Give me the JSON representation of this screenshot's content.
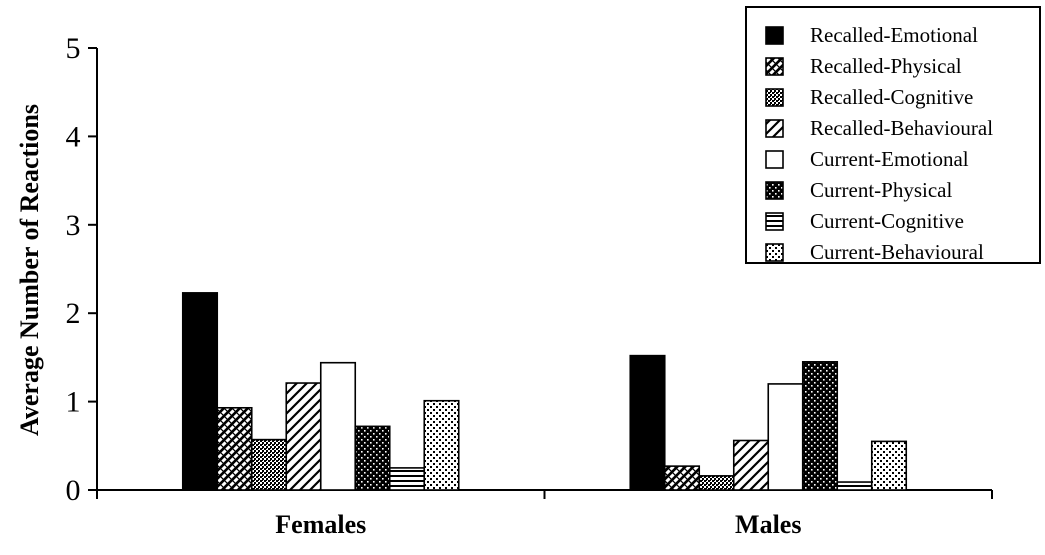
{
  "chart_data": {
    "type": "bar",
    "title": "",
    "xlabel": "",
    "ylabel": "Average Number of Reactions",
    "ylim": [
      0,
      5
    ],
    "yticks": [
      0,
      1,
      2,
      3,
      4,
      5
    ],
    "categories": [
      "Females",
      "Males"
    ],
    "legend_position": "top-right",
    "grid": false,
    "series": [
      {
        "name": "Recalled-Emotional",
        "values": [
          2.23,
          1.52
        ],
        "pattern": "solid"
      },
      {
        "name": "Recalled-Physical",
        "values": [
          0.93,
          0.27
        ],
        "pattern": "crosshatch"
      },
      {
        "name": "Recalled-Cognitive",
        "values": [
          0.57,
          0.16
        ],
        "pattern": "fine-dots"
      },
      {
        "name": "Recalled-Behavioural",
        "values": [
          1.21,
          0.56
        ],
        "pattern": "diagonal"
      },
      {
        "name": "Current-Emotional",
        "values": [
          1.44,
          1.2
        ],
        "pattern": "white"
      },
      {
        "name": "Current-Physical",
        "values": [
          0.72,
          1.45
        ],
        "pattern": "dark-dots"
      },
      {
        "name": "Current-Cognitive",
        "values": [
          0.25,
          0.09
        ],
        "pattern": "horizontal"
      },
      {
        "name": "Current-Behavioural",
        "values": [
          1.01,
          0.55
        ],
        "pattern": "light-dots"
      }
    ]
  }
}
